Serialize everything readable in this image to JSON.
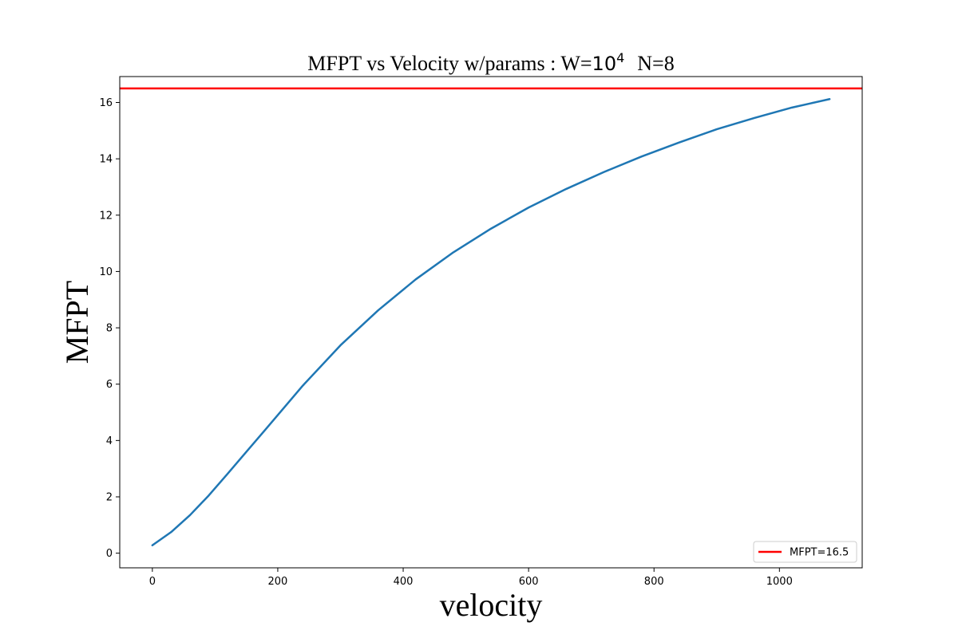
{
  "chart_data": {
    "type": "line",
    "title": {
      "prefix": "MFPT vs Velocity w/params   :   W=",
      "base": "10",
      "exponent": "4",
      "suffix": "N=8"
    },
    "xlabel": "velocity",
    "ylabel": "MFPT",
    "xlim": [
      -52,
      1132
    ],
    "ylim": [
      -0.52,
      16.92
    ],
    "x_ticks": [
      0,
      200,
      400,
      600,
      800,
      1000
    ],
    "y_ticks": [
      0,
      2,
      4,
      6,
      8,
      10,
      12,
      14,
      16
    ],
    "grid": false,
    "legend": {
      "position": "bottom-right",
      "entries": [
        "MFPT=16.5"
      ]
    },
    "series": [
      {
        "color": "#1f77b4",
        "x": [
          0,
          30,
          60,
          90,
          120,
          150,
          180,
          240,
          300,
          360,
          420,
          480,
          540,
          600,
          660,
          720,
          780,
          840,
          900,
          960,
          1020,
          1080
        ],
        "y": [
          0.28,
          0.75,
          1.35,
          2.05,
          2.82,
          3.6,
          4.38,
          5.95,
          7.38,
          8.62,
          9.72,
          10.68,
          11.52,
          12.27,
          12.93,
          13.53,
          14.08,
          14.58,
          15.05,
          15.45,
          15.82,
          16.12
        ]
      }
    ],
    "hlines": [
      {
        "y": 16.5,
        "color": "#ff0000",
        "label": "MFPT=16.5"
      }
    ]
  }
}
